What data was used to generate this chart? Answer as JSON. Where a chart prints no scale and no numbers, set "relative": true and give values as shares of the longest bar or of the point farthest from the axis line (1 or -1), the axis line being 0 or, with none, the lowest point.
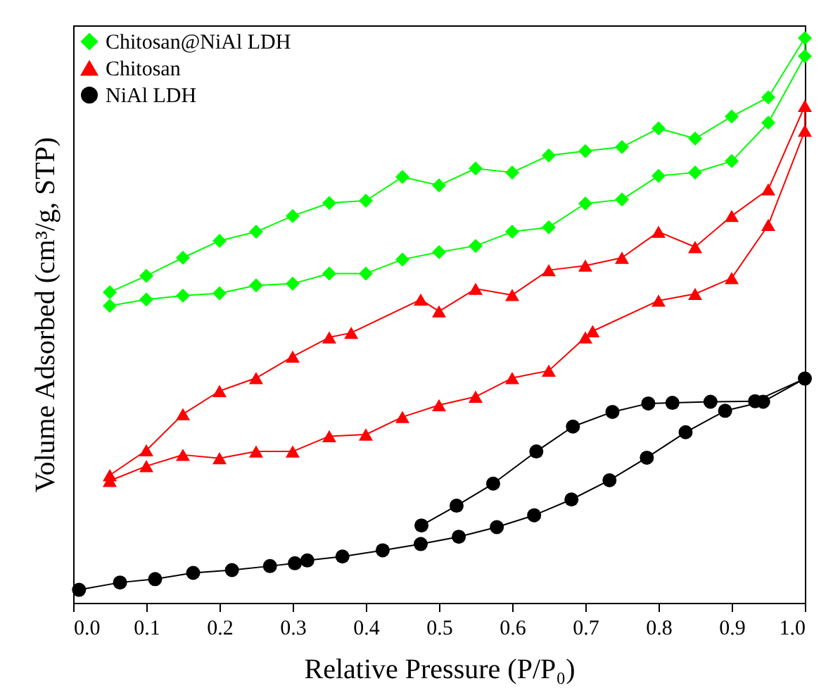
{
  "chart_data": {
    "type": "line",
    "relative": true,
    "xlabel": "Relative Pressure (P/P₀)",
    "ylabel": "Volume Adsorbed (cm³/g, STP)",
    "legend": "top left",
    "xlim": [
      0,
      1
    ],
    "xticks": [
      {
        "value": 0,
        "label": "0.0"
      },
      {
        "value": 0.1,
        "label": "0.1"
      },
      {
        "value": 0.2,
        "label": "0.2"
      },
      {
        "value": 0.3,
        "label": "0.3"
      },
      {
        "value": 0.4,
        "label": "0.4"
      },
      {
        "value": 0.5,
        "label": "0.5"
      },
      {
        "value": 0.6,
        "label": "0.6"
      },
      {
        "value": 0.7,
        "label": "0.7"
      },
      {
        "value": 0.8,
        "label": "0.8"
      },
      {
        "value": 0.9,
        "label": "0.9"
      },
      {
        "value": 1,
        "label": "1.0"
      }
    ],
    "series": [
      {
        "name": "Chitosan@NiAl LDH",
        "color": "#00ff00",
        "marker": "diamond",
        "x": [
          0.05,
          0.1,
          0.15,
          0.2,
          0.25,
          0.3,
          0.35,
          0.4,
          0.45,
          0.5,
          0.55,
          0.6,
          0.65,
          0.7,
          0.75,
          0.8,
          0.85,
          0.9,
          0.95,
          1.0,
          1.0,
          0.95,
          0.9,
          0.85,
          0.8,
          0.75,
          0.7,
          0.65,
          0.6,
          0.55,
          0.5,
          0.45,
          0.4,
          0.35,
          0.3,
          0.25,
          0.2,
          0.15,
          0.1,
          0.05
        ],
        "values": [
          0.526,
          0.537,
          0.544,
          0.548,
          0.562,
          0.565,
          0.583,
          0.583,
          0.608,
          0.621,
          0.632,
          0.657,
          0.665,
          0.707,
          0.714,
          0.756,
          0.762,
          0.782,
          0.85,
          0.968,
          1.0,
          0.895,
          0.861,
          0.822,
          0.84,
          0.807,
          0.8,
          0.792,
          0.762,
          0.769,
          0.739,
          0.754,
          0.712,
          0.708,
          0.685,
          0.657,
          0.641,
          0.611,
          0.579,
          0.55
        ]
      },
      {
        "name": "Chitosan",
        "color": "#ff0000",
        "marker": "triangle",
        "x": [
          0.05,
          0.1,
          0.15,
          0.2,
          0.25,
          0.3,
          0.35,
          0.4,
          0.45,
          0.5,
          0.55,
          0.6,
          0.65,
          0.7,
          0.71,
          0.8,
          0.85,
          0.9,
          0.95,
          1.0,
          1.0,
          0.95,
          0.9,
          0.85,
          0.8,
          0.75,
          0.7,
          0.65,
          0.6,
          0.55,
          0.5,
          0.475,
          0.38,
          0.35,
          0.3,
          0.25,
          0.2,
          0.15,
          0.1,
          0.05
        ],
        "values": [
          0.216,
          0.242,
          0.262,
          0.256,
          0.268,
          0.268,
          0.295,
          0.298,
          0.329,
          0.35,
          0.365,
          0.398,
          0.411,
          0.47,
          0.481,
          0.535,
          0.547,
          0.575,
          0.669,
          0.836,
          0.88,
          0.732,
          0.685,
          0.63,
          0.657,
          0.611,
          0.597,
          0.589,
          0.545,
          0.556,
          0.516,
          0.537,
          0.478,
          0.47,
          0.436,
          0.398,
          0.375,
          0.334,
          0.27,
          0.226
        ]
      },
      {
        "name": "NiAl LDH",
        "color": "#000000",
        "marker": "circle",
        "x": [
          0.008,
          0.064,
          0.112,
          0.164,
          0.217,
          0.269,
          0.303,
          0.32,
          0.368,
          0.423,
          0.475,
          0.527,
          0.579,
          0.63,
          0.681,
          0.733,
          0.784,
          0.837,
          0.891,
          0.943,
          1.0,
          0.932,
          0.871,
          0.819,
          0.786,
          0.737,
          0.683,
          0.633,
          0.574,
          0.524,
          0.476
        ],
        "values": [
          0.023,
          0.036,
          0.042,
          0.053,
          0.058,
          0.065,
          0.07,
          0.075,
          0.082,
          0.093,
          0.104,
          0.117,
          0.134,
          0.155,
          0.183,
          0.217,
          0.257,
          0.302,
          0.34,
          0.356,
          0.397,
          0.357,
          0.356,
          0.354,
          0.353,
          0.338,
          0.312,
          0.268,
          0.211,
          0.172,
          0.137
        ]
      }
    ]
  }
}
